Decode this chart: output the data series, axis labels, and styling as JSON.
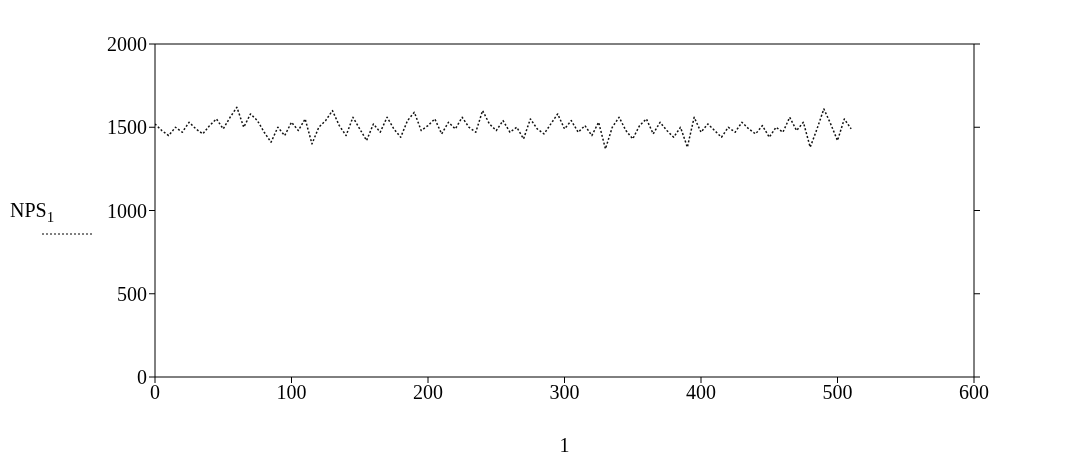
{
  "chart_data": {
    "type": "line",
    "ylabel": "NPS$_{1}$",
    "xlabel": "1",
    "line_style": "dotted",
    "color": "#111111",
    "x": [
      0,
      5,
      10,
      15,
      20,
      25,
      30,
      35,
      40,
      45,
      50,
      55,
      60,
      65,
      70,
      75,
      80,
      85,
      90,
      95,
      100,
      105,
      110,
      115,
      120,
      125,
      130,
      135,
      140,
      145,
      150,
      155,
      160,
      165,
      170,
      175,
      180,
      185,
      190,
      195,
      200,
      205,
      210,
      215,
      220,
      225,
      230,
      235,
      240,
      245,
      250,
      255,
      260,
      265,
      270,
      275,
      280,
      285,
      290,
      295,
      300,
      305,
      310,
      315,
      320,
      325,
      330,
      335,
      340,
      345,
      350,
      355,
      360,
      365,
      370,
      375,
      380,
      385,
      390,
      395,
      400,
      405,
      410,
      415,
      420,
      425,
      430,
      435,
      440,
      445,
      450,
      455,
      460,
      465,
      470,
      475,
      480,
      485,
      490,
      495,
      500,
      505,
      510
    ],
    "values": [
      1520,
      1480,
      1450,
      1500,
      1470,
      1530,
      1490,
      1460,
      1510,
      1550,
      1490,
      1560,
      1620,
      1500,
      1580,
      1540,
      1470,
      1410,
      1500,
      1450,
      1530,
      1480,
      1550,
      1400,
      1500,
      1540,
      1600,
      1510,
      1450,
      1560,
      1490,
      1420,
      1520,
      1470,
      1560,
      1490,
      1440,
      1540,
      1590,
      1480,
      1510,
      1550,
      1460,
      1530,
      1490,
      1560,
      1500,
      1470,
      1600,
      1520,
      1480,
      1540,
      1470,
      1500,
      1430,
      1550,
      1490,
      1460,
      1520,
      1580,
      1490,
      1540,
      1470,
      1510,
      1450,
      1530,
      1370,
      1500,
      1560,
      1480,
      1430,
      1510,
      1550,
      1460,
      1530,
      1480,
      1440,
      1500,
      1380,
      1560,
      1470,
      1520,
      1480,
      1440,
      1500,
      1470,
      1530,
      1490,
      1460,
      1510,
      1440,
      1500,
      1470,
      1560,
      1480,
      1530,
      1380,
      1490,
      1610,
      1520,
      1420,
      1550,
      1490
    ],
    "xlim": [
      0,
      600
    ],
    "xticks": [
      0,
      100,
      200,
      300,
      400,
      500,
      600
    ],
    "ylim": [
      0,
      2000
    ],
    "yticks": [
      0,
      500,
      1000,
      1500,
      2000
    ],
    "marker": "none"
  }
}
